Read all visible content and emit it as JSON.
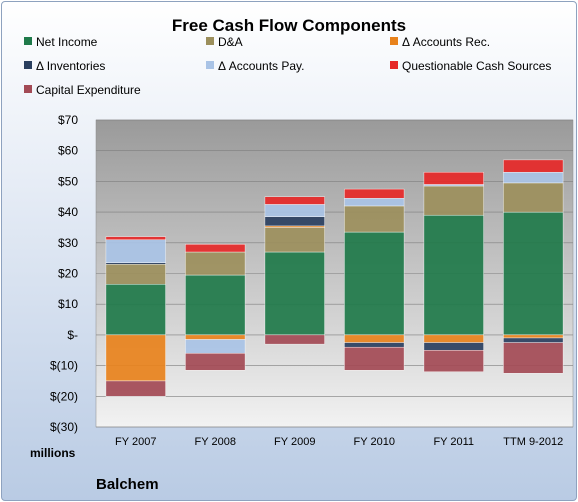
{
  "chart_data": {
    "type": "bar",
    "stacked": true,
    "title": "Free Cash Flow Components",
    "categories": [
      "FY 2007",
      "FY 2008",
      "FY 2009",
      "FY 2010",
      "FY 2011",
      "TTM 9-2012"
    ],
    "y_tick_labels": [
      "$70",
      "$60",
      "$50",
      "$40",
      "$30",
      "$20",
      "$10",
      "$-",
      "$(10)",
      "$(20)",
      "$(30)"
    ],
    "ylim": [
      -30,
      70
    ],
    "ylabel": "millions",
    "grid": true,
    "legend_position": "top",
    "series": [
      {
        "name": "Net Income",
        "color": "#1f7a4a",
        "values": [
          16.5,
          19.5,
          27.0,
          33.5,
          39.0,
          40.0
        ]
      },
      {
        "name": "D&A",
        "color": "#9c8f5c",
        "values": [
          6.5,
          7.5,
          8.0,
          8.5,
          9.5,
          9.5
        ]
      },
      {
        "name": "Δ Accounts Rec.",
        "color": "#e8821c",
        "values": [
          -15.0,
          -1.5,
          0.5,
          -2.5,
          -2.5,
          -1.0
        ]
      },
      {
        "name": "Δ Inventories",
        "color": "#2a3f5f",
        "values": [
          0.5,
          0.0,
          3.0,
          -1.5,
          -2.5,
          -1.5
        ]
      },
      {
        "name": "Δ Accounts Pay.",
        "color": "#a9c3e6",
        "values": [
          7.5,
          -4.5,
          4.0,
          2.5,
          0.5,
          3.5
        ]
      },
      {
        "name": "Questionable Cash Sources",
        "color": "#e62828",
        "values": [
          1.0,
          2.5,
          2.5,
          3.0,
          4.0,
          4.0
        ]
      },
      {
        "name": "Capital Expenditure",
        "color": "#a34a55",
        "values": [
          -5.0,
          -5.5,
          -3.0,
          -7.5,
          -7.0,
          -10.0
        ]
      }
    ]
  },
  "footer": {
    "company": "Balchem"
  }
}
